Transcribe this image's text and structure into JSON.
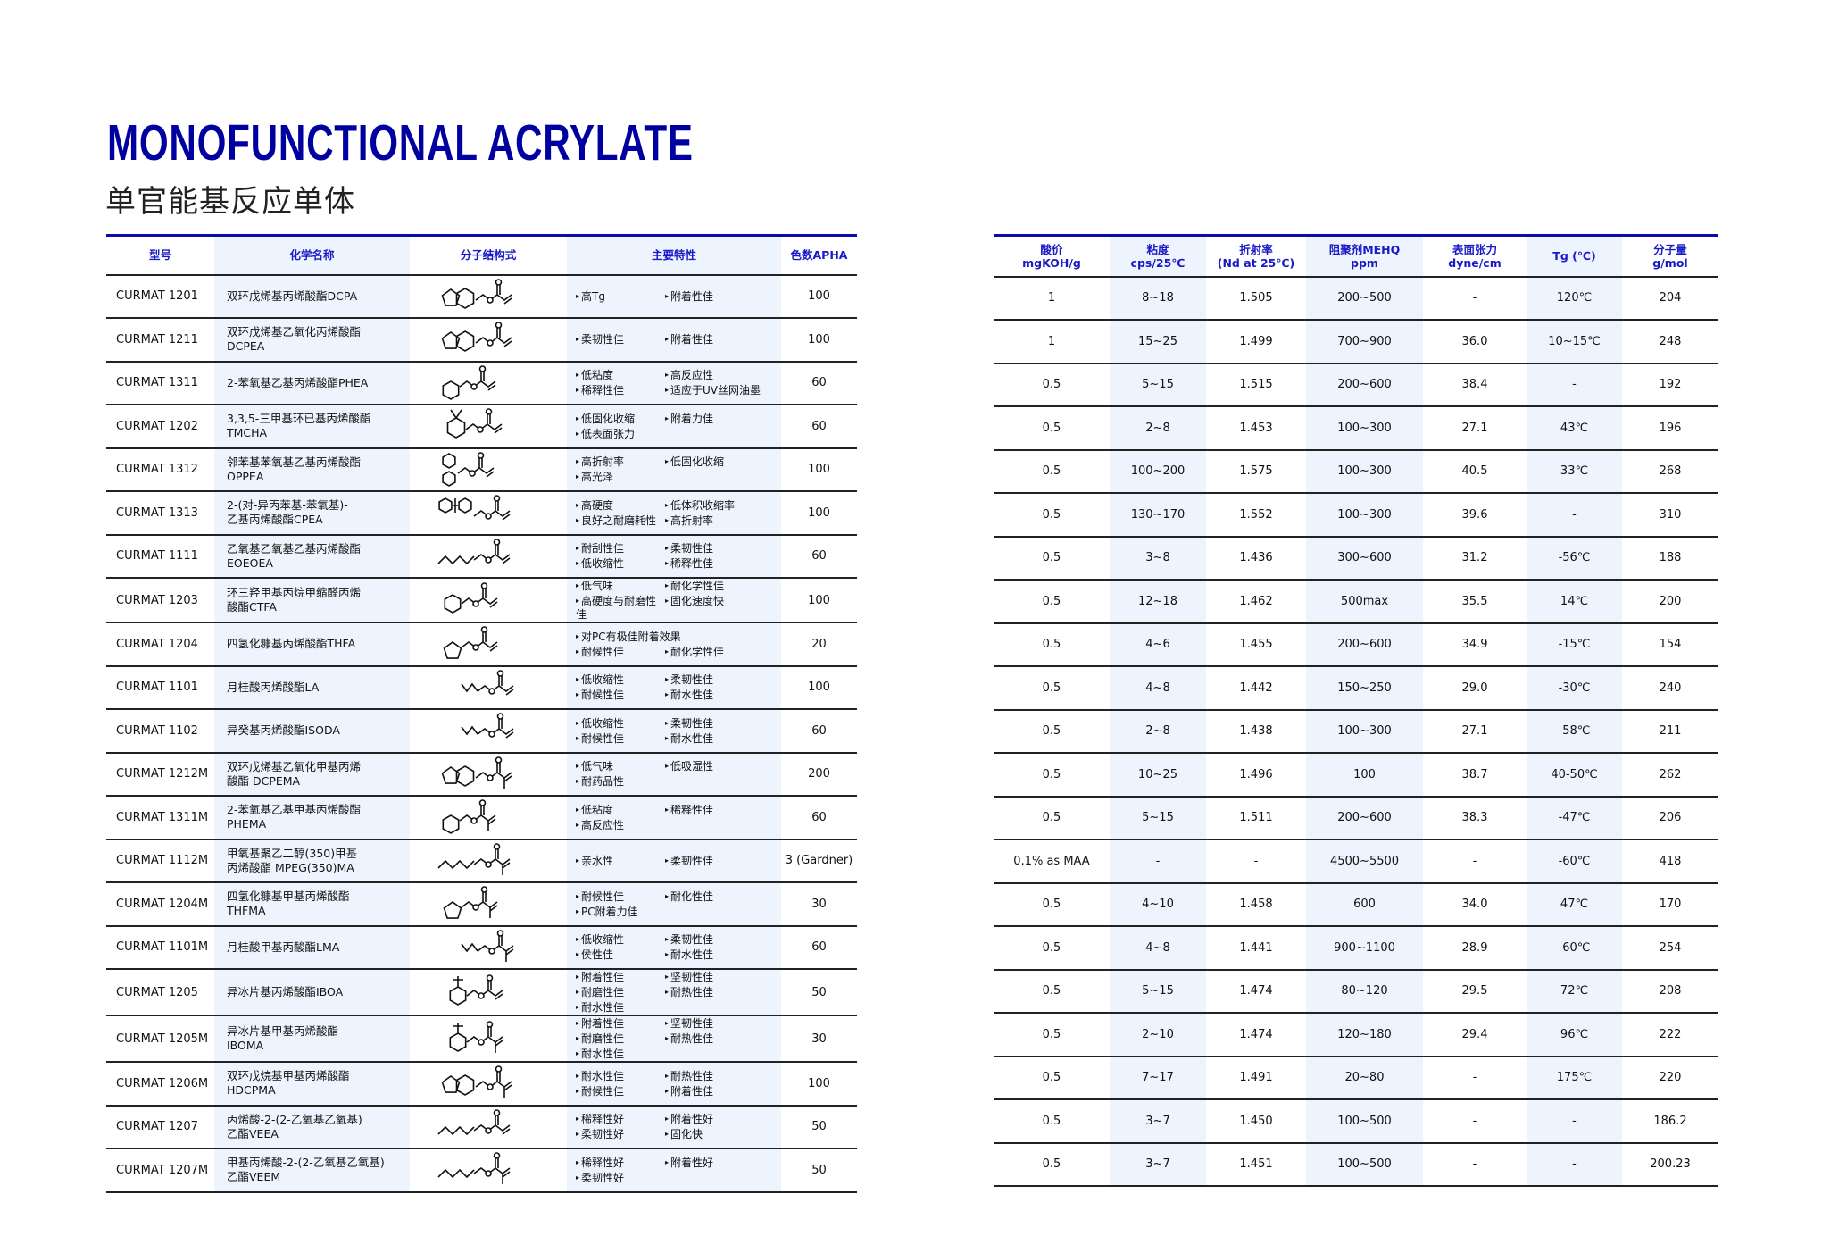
{
  "title": "MONOFUNCTIONAL  ACRYLATE",
  "subtitle": "单官能基反应单体",
  "colors": {
    "accent": "#0000a0",
    "header_text": "#1a1ac8",
    "column_shade": "#eef4fd"
  },
  "left_table": {
    "headers": [
      "型号",
      "化学名称",
      "分子结构式",
      "主要特性",
      "色数APHA"
    ],
    "rows": [
      {
        "model": "CURMAT 1201",
        "name": [
          "双环戊烯基丙烯酸酯DCPA"
        ],
        "structure": "bicyclic-acrylate",
        "props": [
          [
            "高Tg",
            "附着性佳"
          ]
        ],
        "apha": "100"
      },
      {
        "model": "CURMAT 1211",
        "name": [
          "双环戊烯基乙氧化丙烯酸酯",
          "DCPEA"
        ],
        "structure": "bicyclic-ethoxy-acrylate",
        "props": [
          [
            "柔韧性佳",
            "附着性佳"
          ]
        ],
        "apha": "100"
      },
      {
        "model": "CURMAT 1311",
        "name": [
          "2-苯氧基乙基丙烯酸酯PHEA"
        ],
        "structure": "phenoxy-acrylate",
        "props": [
          [
            "低粘度",
            "高反应性"
          ],
          [
            "稀释性佳",
            "适应于UV丝网油墨"
          ]
        ],
        "apha": "60"
      },
      {
        "model": "CURMAT 1202",
        "name": [
          "3,3,5-三甲基环已基丙烯酸酯",
          "TMCHA"
        ],
        "structure": "cyclohexyl-acrylate",
        "props": [
          [
            "低固化收缩",
            "附着力佳"
          ],
          [
            "低表面张力"
          ]
        ],
        "apha": "60"
      },
      {
        "model": "CURMAT 1312",
        "name": [
          "邻苯基苯氧基乙基丙烯酸酯",
          "OPPEA"
        ],
        "structure": "biphenyl-acrylate",
        "props": [
          [
            "高折射率",
            "低固化收缩"
          ],
          [
            "高光泽"
          ]
        ],
        "apha": "100"
      },
      {
        "model": "CURMAT 1313",
        "name": [
          "2-(对-异丙苯基-苯氧基)-",
          "乙基丙烯酸酯CPEA"
        ],
        "structure": "cumylphenoxy-acrylate",
        "props": [
          [
            "高硬度",
            "低体积收缩率"
          ],
          [
            "良好之耐磨耗性",
            "高折射率"
          ]
        ],
        "apha": "100"
      },
      {
        "model": "CURMAT 1111",
        "name": [
          "乙氧基乙氧基乙基丙烯酸酯",
          "EOEOEA"
        ],
        "structure": "chain-acrylate",
        "props": [
          [
            "耐刮性佳",
            "柔韧性佳"
          ],
          [
            "低收缩性",
            "稀释性佳"
          ]
        ],
        "apha": "60"
      },
      {
        "model": "CURMAT 1203",
        "name": [
          "环三羟甲基丙烷甲缩醛丙烯",
          "酸酯CTFA"
        ],
        "structure": "dioxane-acrylate",
        "props": [
          [
            "低气味",
            "耐化学性佳"
          ],
          [
            "高硬度与耐磨性佳",
            "固化速度快"
          ]
        ],
        "apha": "100"
      },
      {
        "model": "CURMAT 1204",
        "name": [
          "四氢化糠基丙烯酸酯THFA"
        ],
        "structure": "thf-acrylate",
        "props": [
          [
            "对PC有极佳附着效果"
          ],
          [
            "耐候性佳",
            "耐化学性佳"
          ]
        ],
        "apha": "20"
      },
      {
        "model": "CURMAT 1101",
        "name": [
          "月桂酸丙烯酸酯LA"
        ],
        "structure": "alkyl-acrylate",
        "props": [
          [
            "低收缩性",
            "柔韧性佳"
          ],
          [
            "耐候性佳",
            "耐水性佳"
          ]
        ],
        "apha": "100"
      },
      {
        "model": "CURMAT 1102",
        "name": [
          "异癸基丙烯酸酯ISODA"
        ],
        "structure": "alkyl-acrylate",
        "props": [
          [
            "低收缩性",
            "柔韧性佳"
          ],
          [
            "耐候性佳",
            "耐水性佳"
          ]
        ],
        "apha": "60"
      },
      {
        "model": "CURMAT 1212M",
        "name": [
          "双环戊烯基乙氧化甲基丙烯",
          "酸酯 DCPEMA"
        ],
        "structure": "bicyclic-ethoxy-methacrylate",
        "props": [
          [
            "低气味",
            "低吸湿性"
          ],
          [
            "耐药品性"
          ]
        ],
        "apha": "200"
      },
      {
        "model": "CURMAT 1311M",
        "name": [
          "2-苯氧基乙基甲基丙烯酸酯",
          "PHEMA"
        ],
        "structure": "phenoxy-methacrylate",
        "props": [
          [
            "低粘度",
            "稀释性佳"
          ],
          [
            "高反应性"
          ]
        ],
        "apha": "60"
      },
      {
        "model": "CURMAT 1112M",
        "name": [
          "甲氧基聚乙二醇(350)甲基",
          "丙烯酸酯 MPEG(350)MA"
        ],
        "structure": "peg-methacrylate",
        "props": [
          [
            "亲水性",
            "柔韧性佳"
          ]
        ],
        "apha": "3 (Gardner)"
      },
      {
        "model": "CURMAT 1204M",
        "name": [
          "四氢化糠基甲基丙烯酸酯",
          "THFMA"
        ],
        "structure": "thf-methacrylate",
        "props": [
          [
            "耐候性佳",
            "耐化性佳"
          ],
          [
            "PC附着力佳"
          ]
        ],
        "apha": "30"
      },
      {
        "model": "CURMAT 1101M",
        "name": [
          "月桂酸甲基丙酸酯LMA"
        ],
        "structure": "alkyl-methacrylate",
        "props": [
          [
            "低收缩性",
            "柔韧性佳"
          ],
          [
            "侯性佳",
            "耐水性佳"
          ]
        ],
        "apha": "60"
      },
      {
        "model": "CURMAT 1205",
        "name": [
          "异冰片基丙烯酸酯IBOA"
        ],
        "structure": "isobornyl-acrylate",
        "props": [
          [
            "附着性佳",
            "坚韧性佳"
          ],
          [
            "耐磨性佳",
            "耐热性佳"
          ],
          [
            "耐水性佳"
          ]
        ],
        "apha": "50"
      },
      {
        "model": "CURMAT 1205M",
        "name": [
          "异冰片基甲基丙烯酸酯",
          "IBOMA"
        ],
        "structure": "isobornyl-methacrylate",
        "props": [
          [
            "附着性佳",
            "坚韧性佳"
          ],
          [
            "耐磨性佳",
            "耐热性佳"
          ],
          [
            "耐水性佳"
          ]
        ],
        "apha": "30"
      },
      {
        "model": "CURMAT 1206M",
        "name": [
          "双环戊烷基甲基丙烯酸酯",
          "HDCPMA"
        ],
        "structure": "bicyclic-methacrylate",
        "props": [
          [
            "耐水性佳",
            "耐热性佳"
          ],
          [
            "耐候性佳",
            "附着性佳"
          ]
        ],
        "apha": "100"
      },
      {
        "model": "CURMAT 1207",
        "name": [
          "丙烯酸-2-(2-乙氧基乙氧基)",
          "乙酯VEEA"
        ],
        "structure": "vinyl-ether-acrylate",
        "props": [
          [
            "稀释性好",
            "附着性好"
          ],
          [
            "柔韧性好",
            "固化快"
          ]
        ],
        "apha": "50"
      },
      {
        "model": "CURMAT 1207M",
        "name": [
          "甲基丙烯酸-2-(2-乙氧基乙氧基)",
          "乙酯VEEM"
        ],
        "structure": "vinyl-ether-methacrylate",
        "props": [
          [
            "稀释性好",
            "附着性好"
          ],
          [
            "柔韧性好"
          ]
        ],
        "apha": "50"
      }
    ]
  },
  "right_table": {
    "headers": [
      [
        "酸价",
        "mgKOH/g"
      ],
      [
        "粘度",
        "cps/25℃"
      ],
      [
        "折射率",
        "(Nd at 25℃)"
      ],
      [
        "阻聚剂MEHQ",
        "ppm"
      ],
      [
        "表面张力",
        "dyne/cm"
      ],
      [
        "Tg (℃)"
      ],
      [
        "分子量",
        "g/mol"
      ]
    ],
    "rows": [
      [
        "1",
        "8~18",
        "1.505",
        "200~500",
        "-",
        "120℃",
        "204"
      ],
      [
        "1",
        "15~25",
        "1.499",
        "700~900",
        "36.0",
        "10~15℃",
        "248"
      ],
      [
        "0.5",
        "5~15",
        "1.515",
        "200~600",
        "38.4",
        "-",
        "192"
      ],
      [
        "0.5",
        "2~8",
        "1.453",
        "100~300",
        "27.1",
        "43℃",
        "196"
      ],
      [
        "0.5",
        "100~200",
        "1.575",
        "100~300",
        "40.5",
        "33℃",
        "268"
      ],
      [
        "0.5",
        "130~170",
        "1.552",
        "100~300",
        "39.6",
        "-",
        "310"
      ],
      [
        "0.5",
        "3~8",
        "1.436",
        "300~600",
        "31.2",
        "-56℃",
        "188"
      ],
      [
        "0.5",
        "12~18",
        "1.462",
        "500max",
        "35.5",
        "14℃",
        "200"
      ],
      [
        "0.5",
        "4~6",
        "1.455",
        "200~600",
        "34.9",
        "-15℃",
        "154"
      ],
      [
        "0.5",
        "4~8",
        "1.442",
        "150~250",
        "29.0",
        "-30℃",
        "240"
      ],
      [
        "0.5",
        "2~8",
        "1.438",
        "100~300",
        "27.1",
        "-58℃",
        "211"
      ],
      [
        "0.5",
        "10~25",
        "1.496",
        "100",
        "38.7",
        "40-50℃",
        "262"
      ],
      [
        "0.5",
        "5~15",
        "1.511",
        "200~600",
        "38.3",
        "-47℃",
        "206"
      ],
      [
        "0.1% as MAA",
        "-",
        "-",
        "4500~5500",
        "-",
        "-60℃",
        "418"
      ],
      [
        "0.5",
        "4~10",
        "1.458",
        "600",
        "34.0",
        "47℃",
        "170"
      ],
      [
        "0.5",
        "4~8",
        "1.441",
        "900~1100",
        "28.9",
        "-60℃",
        "254"
      ],
      [
        "0.5",
        "5~15",
        "1.474",
        "80~120",
        "29.5",
        "72℃",
        "208"
      ],
      [
        "0.5",
        "2~10",
        "1.474",
        "120~180",
        "29.4",
        "96℃",
        "222"
      ],
      [
        "0.5",
        "7~17",
        "1.491",
        "20~80",
        "-",
        "175℃",
        "220"
      ],
      [
        "0.5",
        "3~7",
        "1.450",
        "100~500",
        "-",
        "-",
        "186.2"
      ],
      [
        "0.5",
        "3~7",
        "1.451",
        "100~500",
        "-",
        "-",
        "200.23"
      ]
    ]
  }
}
